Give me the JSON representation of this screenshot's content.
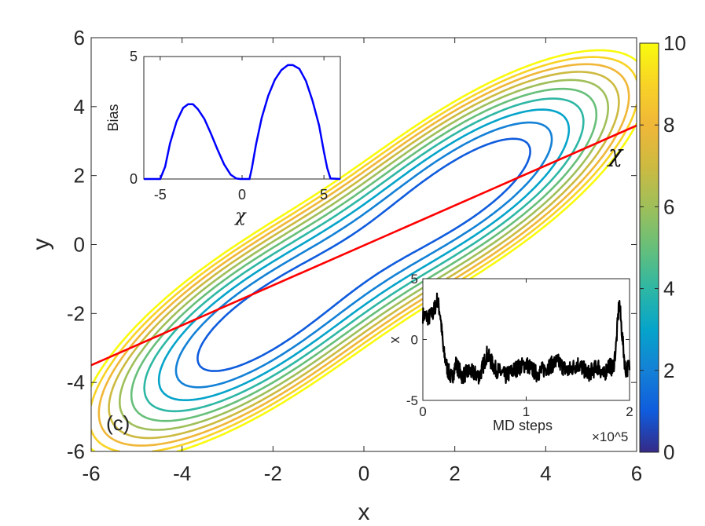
{
  "chart_data": [
    {
      "type": "contour",
      "panel_label": "(c)",
      "xlabel": "x",
      "ylabel": "y",
      "xlim": [
        -6,
        6
      ],
      "ylim": [
        -6,
        6
      ],
      "xticks": [
        "-6",
        "-4",
        "-2",
        "0",
        "2",
        "4",
        "6"
      ],
      "yticks": [
        "-6",
        "-4",
        "-2",
        "0",
        "2",
        "4",
        "6"
      ],
      "contour_levels": [
        1,
        2,
        3,
        4,
        5,
        6,
        7,
        8,
        9,
        10
      ],
      "minima": [
        {
          "x": -2.4,
          "y": -2.4
        },
        {
          "x": 2.4,
          "y": 1.8
        }
      ],
      "colorbar": {
        "min": 0,
        "max": 10,
        "ticks": [
          "0",
          "2",
          "4",
          "6",
          "8",
          "10"
        ]
      },
      "cv_line": {
        "label": "χ",
        "color": "#ff0000",
        "points": [
          [
            -6,
            -3.5
          ],
          [
            6,
            3.45
          ]
        ]
      }
    },
    {
      "type": "line",
      "inset": "top-left",
      "xlabel": "χ",
      "ylabel": "Bias",
      "xlim": [
        -6,
        6
      ],
      "ylim": [
        0,
        5
      ],
      "xticks": [
        "-5",
        "0",
        "5"
      ],
      "yticks": [
        "0",
        "5"
      ],
      "series": [
        {
          "name": "Bias",
          "color": "#0000ff",
          "x": [
            -6,
            -5.2,
            -5.0,
            -4.7,
            -4.4,
            -4.0,
            -3.6,
            -3.3,
            -3.0,
            -2.7,
            -2.3,
            -1.9,
            -1.5,
            -1.1,
            -0.7,
            -0.35,
            -0.1,
            0.2,
            0.45,
            0.6,
            0.85,
            1.2,
            1.6,
            2.0,
            2.4,
            2.8,
            3.1,
            3.5,
            3.9,
            4.3,
            4.7,
            5.0,
            5.2,
            5.4,
            6
          ],
          "y": [
            0,
            0,
            0,
            0.5,
            1.45,
            2.35,
            2.9,
            3.05,
            3.05,
            2.85,
            2.45,
            1.85,
            1.2,
            0.6,
            0.18,
            0.02,
            0,
            0,
            0,
            0.45,
            1.4,
            2.5,
            3.4,
            4.05,
            4.45,
            4.65,
            4.65,
            4.5,
            4.0,
            3.2,
            2.2,
            1.1,
            0.45,
            0.02,
            0
          ]
        }
      ]
    },
    {
      "type": "line",
      "inset": "bottom-right",
      "xlabel": "MD steps",
      "ylabel": "x",
      "xlim": [
        0,
        2
      ],
      "ylim": [
        -5,
        5
      ],
      "x_multiplier": "×10^5",
      "xticks": [
        "0",
        "1",
        "2"
      ],
      "yticks": [
        "-5",
        "0",
        "5"
      ],
      "series": [
        {
          "name": "x trajectory",
          "color": "#000000",
          "x": [
            0,
            0.06,
            0.1,
            0.14,
            0.17,
            0.2,
            0.24,
            0.28,
            0.32,
            0.38,
            0.45,
            0.55,
            0.62,
            0.7,
            0.8,
            0.9,
            1.0,
            1.1,
            1.2,
            1.3,
            1.4,
            1.5,
            1.6,
            1.7,
            1.75,
            1.8,
            1.84,
            1.87,
            1.9,
            1.93,
            1.96,
            2.0
          ],
          "y": [
            2.0,
            1.8,
            2.2,
            3.3,
            2.0,
            -1.0,
            -2.5,
            -3.2,
            -2.0,
            -3.0,
            -2.6,
            -3.0,
            -1.2,
            -2.4,
            -3.0,
            -2.4,
            -2.0,
            -2.8,
            -2.3,
            -1.8,
            -2.6,
            -2.0,
            -2.8,
            -2.2,
            -3.0,
            -2.0,
            -2.5,
            -0.5,
            3.2,
            0.2,
            -2.5,
            -2.2
          ]
        }
      ]
    }
  ]
}
